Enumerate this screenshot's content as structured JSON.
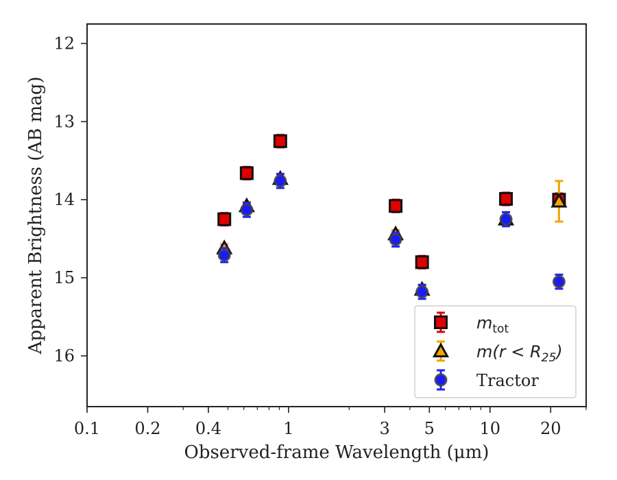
{
  "chart_data": {
    "type": "scatter",
    "xlabel": "Observed-frame Wavelength (μm)",
    "ylabel": "Apparent Brightness (AB mag)",
    "x_scale": "log",
    "xlim": [
      0.1,
      30
    ],
    "ylim": [
      16.65,
      11.75
    ],
    "y_inverted": true,
    "x_ticks": [
      0.1,
      0.2,
      0.4,
      1,
      3,
      5,
      10,
      20
    ],
    "x_tick_labels": [
      "0.1",
      "0.2",
      "0.4",
      "1",
      "3",
      "5",
      "10",
      "20"
    ],
    "y_ticks": [
      12,
      13,
      14,
      15,
      16
    ],
    "y_tick_labels": [
      "12",
      "13",
      "14",
      "15",
      "16"
    ],
    "grid": false,
    "legend_position": "lower-right",
    "series": [
      {
        "name_main": "m",
        "name_sub": "tot",
        "marker": "square",
        "color": "#e00000",
        "error_color": "#e00000",
        "points": [
          {
            "x": 0.48,
            "y": 14.25,
            "err": 0.08
          },
          {
            "x": 0.62,
            "y": 13.66,
            "err": 0.08
          },
          {
            "x": 0.91,
            "y": 13.25,
            "err": 0.08
          },
          {
            "x": 3.4,
            "y": 14.08,
            "err": 0.08
          },
          {
            "x": 4.6,
            "y": 14.8,
            "err": 0.08
          },
          {
            "x": 12.0,
            "y": 13.99,
            "err": 0.08
          },
          {
            "x": 22.0,
            "y": 14.0,
            "err": 0.08
          }
        ]
      },
      {
        "name_main": "m(r < R",
        "name_sub": "25",
        "name_tail": ")",
        "marker": "triangle",
        "color": "#f5a300",
        "error_color": "#f5a300",
        "points": [
          {
            "x": 0.48,
            "y": 14.62,
            "err": 0.05
          },
          {
            "x": 0.62,
            "y": 14.08,
            "err": 0.05
          },
          {
            "x": 0.91,
            "y": 13.73,
            "err": 0.05
          },
          {
            "x": 3.4,
            "y": 14.44,
            "err": 0.05
          },
          {
            "x": 4.6,
            "y": 15.15,
            "err": 0.05
          },
          {
            "x": 12.0,
            "y": 14.25,
            "err": 0.05
          },
          {
            "x": 22.0,
            "y": 14.02,
            "err": 0.26
          }
        ]
      },
      {
        "name": "Tractor",
        "marker": "circle",
        "color": "#1a1aff",
        "error_color": "#2222ff",
        "points": [
          {
            "x": 0.48,
            "y": 14.71,
            "err": 0.09
          },
          {
            "x": 0.62,
            "y": 14.13,
            "err": 0.09
          },
          {
            "x": 0.91,
            "y": 13.76,
            "err": 0.09
          },
          {
            "x": 3.4,
            "y": 14.51,
            "err": 0.09
          },
          {
            "x": 4.6,
            "y": 15.18,
            "err": 0.09
          },
          {
            "x": 12.0,
            "y": 14.25,
            "err": 0.09
          },
          {
            "x": 22.0,
            "y": 15.05,
            "err": 0.09
          }
        ]
      }
    ]
  }
}
